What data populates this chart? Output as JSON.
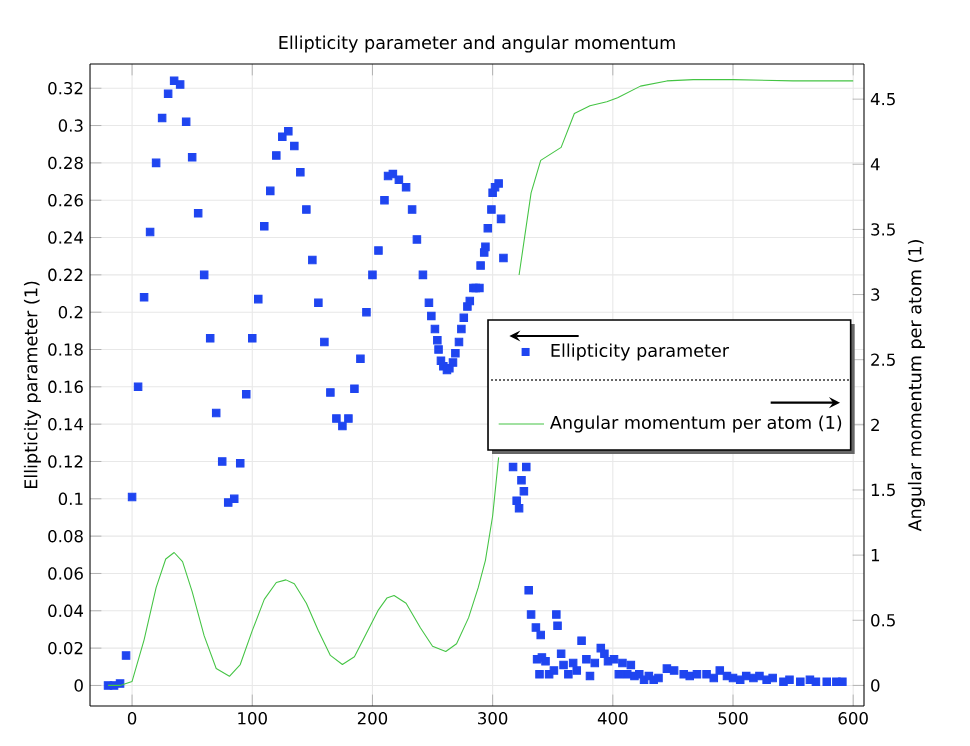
{
  "chart_data": {
    "type": "scatter",
    "title": "Ellipticity parameter and angular momentum",
    "ylabel": "Ellipticity parameter (1)",
    "y2label": "Angular momentum per atom (1)",
    "xlim": [
      -35,
      609
    ],
    "ylim": [
      -0.011,
      0.333
    ],
    "y2lim": [
      -0.158,
      4.77
    ],
    "xticks": [
      0,
      100,
      200,
      300,
      400,
      500,
      600
    ],
    "yticks": [
      0,
      0.02,
      0.04,
      0.06,
      0.08,
      0.1,
      0.12,
      0.14,
      0.16,
      0.18,
      0.2,
      0.22,
      0.24,
      0.26,
      0.28,
      0.3,
      0.32
    ],
    "y2ticks": [
      0,
      0.5,
      1,
      1.5,
      2,
      2.5,
      3,
      3.5,
      4,
      4.5
    ],
    "grid": true,
    "legend": "right",
    "series": [
      {
        "name": "Ellipticity parameter",
        "marker": "square",
        "color": "#1f45f0",
        "x": [
          -20,
          -15,
          -10,
          -5,
          0,
          5,
          10,
          15,
          20,
          25,
          30,
          35,
          40,
          45,
          50,
          55,
          60,
          65,
          70,
          75,
          80,
          85,
          90,
          95,
          100,
          105,
          110,
          115,
          120,
          125,
          130,
          135,
          140,
          145,
          150,
          155,
          160,
          165,
          170,
          175,
          180,
          185,
          190,
          195,
          200,
          205,
          210,
          213,
          217,
          222,
          228,
          233,
          237,
          242,
          247,
          249,
          252,
          254,
          255,
          257,
          259,
          262,
          264,
          267,
          269,
          272,
          274,
          276,
          279,
          281,
          284,
          286,
          289,
          290,
          293,
          294,
          296,
          299,
          300,
          302,
          305,
          307,
          309,
          317,
          320,
          322,
          324,
          326,
          328,
          330,
          332,
          336,
          340,
          353,
          354,
          337,
          341,
          339,
          344,
          347,
          351,
          357,
          359,
          363,
          367,
          370,
          374,
          378,
          381,
          385,
          390,
          393,
          396,
          401,
          405,
          408,
          412,
          415,
          418,
          422,
          426,
          430,
          434,
          438,
          445,
          451,
          459,
          464,
          470,
          478,
          484,
          489,
          495,
          500,
          506,
          511,
          517,
          522,
          528,
          533,
          542,
          547,
          556,
          564,
          569,
          578,
          586,
          591
        ],
        "values": [
          0,
          0,
          0.001,
          0.016,
          0.101,
          0.16,
          0.208,
          0.243,
          0.28,
          0.304,
          0.317,
          0.324,
          0.322,
          0.302,
          0.283,
          0.253,
          0.22,
          0.186,
          0.146,
          0.12,
          0.098,
          0.1,
          0.119,
          0.156,
          0.186,
          0.207,
          0.246,
          0.265,
          0.284,
          0.294,
          0.297,
          0.289,
          0.275,
          0.255,
          0.228,
          0.205,
          0.184,
          0.157,
          0.143,
          0.139,
          0.143,
          0.159,
          0.175,
          0.2,
          0.22,
          0.233,
          0.26,
          0.273,
          0.274,
          0.271,
          0.267,
          0.255,
          0.239,
          0.22,
          0.205,
          0.198,
          0.191,
          0.185,
          0.18,
          0.174,
          0.171,
          0.169,
          0.17,
          0.173,
          0.178,
          0.184,
          0.191,
          0.197,
          0.203,
          0.206,
          0.213,
          0.213,
          0.213,
          0.225,
          0.232,
          0.235,
          0.245,
          0.255,
          0.264,
          0.267,
          0.269,
          0.25,
          0.229,
          0.117,
          0.099,
          0.095,
          0.11,
          0.104,
          0.117,
          0.051,
          0.038,
          0.031,
          0.027,
          0.038,
          0.032,
          0.014,
          0.015,
          0.006,
          0.013,
          0.006,
          0.008,
          0.017,
          0.011,
          0.006,
          0.012,
          0.008,
          0.024,
          0.014,
          0.005,
          0.012,
          0.02,
          0.017,
          0.013,
          0.014,
          0.006,
          0.012,
          0.006,
          0.011,
          0.005,
          0.006,
          0.003,
          0.005,
          0.003,
          0.004,
          0.009,
          0.008,
          0.006,
          0.005,
          0.006,
          0.006,
          0.004,
          0.008,
          0.005,
          0.004,
          0.003,
          0.005,
          0.004,
          0.005,
          0.003,
          0.004,
          0.002,
          0.003,
          0.002,
          0.003,
          0.002,
          0.002,
          0.002,
          0.002
        ]
      },
      {
        "name": "Angular momentum per atom (1)",
        "type": "line",
        "axis": "y2",
        "marker": "none",
        "color": "#44c444",
        "x": [
          -20,
          -10,
          0,
          10,
          20,
          28,
          35,
          42,
          50,
          60,
          70,
          81,
          90,
          100,
          110,
          120,
          128,
          135,
          145,
          155,
          165,
          175,
          185,
          195,
          205,
          212,
          218,
          228,
          240,
          250,
          261,
          270,
          280,
          288,
          294,
          300,
          305,
          310,
          315,
          322,
          332,
          340,
          357,
          368,
          381,
          395,
          404,
          423,
          445,
          467,
          500,
          550,
          600
        ],
        "values": [
          0,
          0,
          0.03,
          0.35,
          0.75,
          0.97,
          1.02,
          0.95,
          0.72,
          0.38,
          0.13,
          0.07,
          0.16,
          0.42,
          0.66,
          0.79,
          0.81,
          0.78,
          0.63,
          0.42,
          0.23,
          0.16,
          0.22,
          0.4,
          0.58,
          0.67,
          0.69,
          0.63,
          0.44,
          0.3,
          0.26,
          0.32,
          0.52,
          0.75,
          0.96,
          1.3,
          1.75,
          null,
          null,
          3.15,
          3.78,
          4.03,
          4.13,
          4.39,
          4.45,
          4.48,
          4.51,
          4.6,
          4.64,
          4.65,
          4.65,
          4.64,
          4.64
        ]
      }
    ]
  }
}
